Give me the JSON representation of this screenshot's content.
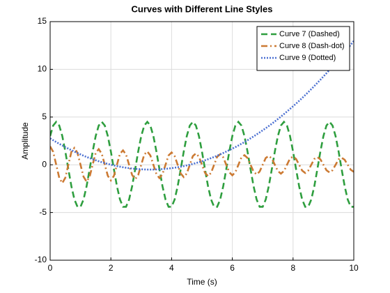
{
  "chart_data": {
    "type": "line",
    "title": "Curves with Different Line Styles",
    "xlabel": "Time (s)",
    "ylabel": "Amplitude",
    "x": [
      0,
      0.1,
      0.2,
      0.3,
      0.4,
      0.5,
      0.6,
      0.7,
      0.8,
      0.9,
      1,
      1.1,
      1.2,
      1.3,
      1.4,
      1.5,
      1.6,
      1.7,
      1.8,
      1.9,
      2,
      2.1,
      2.2,
      2.3,
      2.4,
      2.5,
      2.6,
      2.7,
      2.8,
      2.9,
      3,
      3.1,
      3.2,
      3.3,
      3.4,
      3.5,
      3.6,
      3.7,
      3.8,
      3.9,
      4,
      4.1,
      4.2,
      4.3,
      4.4,
      4.5,
      4.6,
      4.7,
      4.8,
      4.9,
      5,
      5.1,
      5.2,
      5.3,
      5.4,
      5.5,
      5.6,
      5.7,
      5.8,
      5.9,
      6,
      6.1,
      6.2,
      6.3,
      6.4,
      6.5,
      6.6,
      6.7,
      6.8,
      6.9,
      7,
      7.1,
      7.2,
      7.3,
      7.4,
      7.5,
      7.6,
      7.7,
      7.8,
      7.9,
      8,
      8.1,
      8.2,
      8.3,
      8.4,
      8.5,
      8.6,
      8.7,
      8.8,
      8.9,
      9,
      9.1,
      9.2,
      9.3,
      9.4,
      9.5,
      9.6,
      9.7,
      9.8,
      9.9,
      10
    ],
    "series": [
      {
        "name": "Curve 7 (Dashed)",
        "color": "#2e9e3e",
        "style": "dashed",
        "values": [
          3.01,
          4.11,
          4.5,
          4.11,
          3.01,
          1.39,
          -0.47,
          -2.25,
          -3.64,
          -4.4,
          -4.4,
          -3.64,
          -2.25,
          -0.47,
          1.39,
          3.01,
          4.11,
          4.5,
          4.11,
          3.01,
          1.39,
          -0.47,
          -2.25,
          -3.64,
          -4.4,
          -4.4,
          -3.64,
          -2.25,
          -0.47,
          1.39,
          3.01,
          4.11,
          4.5,
          4.11,
          3.01,
          1.39,
          -0.47,
          -2.25,
          -3.64,
          -4.4,
          -4.4,
          -3.64,
          -2.25,
          -0.47,
          1.39,
          3.01,
          4.11,
          4.5,
          4.11,
          3.01,
          1.39,
          -0.47,
          -2.25,
          -3.64,
          -4.4,
          -4.4,
          -3.64,
          -2.25,
          -0.47,
          1.39,
          3.01,
          4.11,
          4.5,
          4.11,
          3.01,
          1.39,
          -0.47,
          -2.25,
          -3.64,
          -4.4,
          -4.4,
          -3.64,
          -2.25,
          -0.47,
          1.39,
          3.01,
          4.11,
          4.5,
          4.11,
          3.01,
          1.39,
          -0.47,
          -2.25,
          -3.64,
          -4.4,
          -4.4,
          -3.64,
          -2.25,
          -0.47,
          1.39,
          3.01,
          4.11,
          4.5,
          4.11,
          3.01,
          1.39,
          -0.47,
          -2.25,
          -3.64,
          -4.4,
          -4.4
        ]
      },
      {
        "name": "Curve 8 (Dash-dot)",
        "color": "#cc7a33",
        "style": "dashdot",
        "values": [
          1.92,
          1.36,
          0,
          -1.36,
          -1.92,
          -1.36,
          0,
          1.36,
          1.77,
          1.25,
          0,
          -1.25,
          -1.77,
          -1.25,
          0,
          1.25,
          1.64,
          1.16,
          0,
          -1.16,
          -1.64,
          -1.16,
          0,
          1.16,
          1.51,
          1.07,
          0,
          -1.07,
          -1.51,
          -1.07,
          0,
          1.07,
          1.39,
          0.98,
          0,
          -0.98,
          -1.39,
          -0.98,
          0,
          0.98,
          1.29,
          0.91,
          0,
          -0.91,
          -1.29,
          -0.91,
          0,
          0.91,
          1.19,
          0.84,
          0,
          -0.84,
          -1.19,
          -0.84,
          0,
          0.84,
          1.1,
          0.78,
          0,
          -0.78,
          -1.1,
          -0.78,
          0,
          0.78,
          1.01,
          0.71,
          0,
          -0.71,
          -1.01,
          -0.71,
          0,
          0.71,
          0.93,
          0.66,
          0,
          -0.66,
          -0.93,
          -0.66,
          0,
          0.66,
          0.86,
          0.61,
          0,
          -0.61,
          -0.86,
          -0.61,
          0,
          0.61,
          0.8,
          0.57,
          0,
          -0.57,
          -0.8,
          -0.57,
          0,
          0.57,
          0.74,
          0.52,
          0,
          -0.52,
          -0.74
        ]
      },
      {
        "name": "Curve 9 (Dotted)",
        "color": "#4a6fd1",
        "style": "dotted",
        "values": [
          2.77,
          2.57,
          2.38,
          2.2,
          2.02,
          1.85,
          1.69,
          1.53,
          1.38,
          1.23,
          1.09,
          0.95,
          0.82,
          0.7,
          0.58,
          0.47,
          0.37,
          0.27,
          0.18,
          0.09,
          0.01,
          -0.07,
          -0.14,
          -0.2,
          -0.26,
          -0.31,
          -0.35,
          -0.39,
          -0.43,
          -0.45,
          -0.47,
          -0.49,
          -0.5,
          -0.5,
          -0.5,
          -0.49,
          -0.47,
          -0.45,
          -0.43,
          -0.39,
          -0.35,
          -0.31,
          -0.26,
          -0.2,
          -0.14,
          -0.07,
          0.01,
          0.09,
          0.18,
          0.27,
          0.37,
          0.47,
          0.58,
          0.7,
          0.82,
          0.95,
          1.09,
          1.23,
          1.38,
          1.53,
          1.69,
          1.85,
          2.02,
          2.2,
          2.38,
          2.57,
          2.77,
          2.97,
          3.18,
          3.39,
          3.61,
          3.83,
          4.06,
          4.3,
          4.54,
          4.79,
          5.05,
          5.31,
          5.58,
          5.85,
          6.13,
          6.41,
          6.7,
          7,
          7.3,
          7.61,
          7.93,
          8.25,
          8.58,
          8.91,
          9.25,
          9.59,
          9.94,
          10.3,
          10.66,
          11.03,
          11.41,
          11.79,
          12.18,
          12.57,
          12.97
        ]
      }
    ],
    "xlim": [
      0,
      10
    ],
    "xticks": [
      0,
      2,
      4,
      6,
      8,
      10
    ],
    "ylim": [
      -10,
      15
    ],
    "yticks": [
      -10,
      -5,
      0,
      5,
      10,
      15
    ],
    "grid": true,
    "legend": "upper right"
  }
}
